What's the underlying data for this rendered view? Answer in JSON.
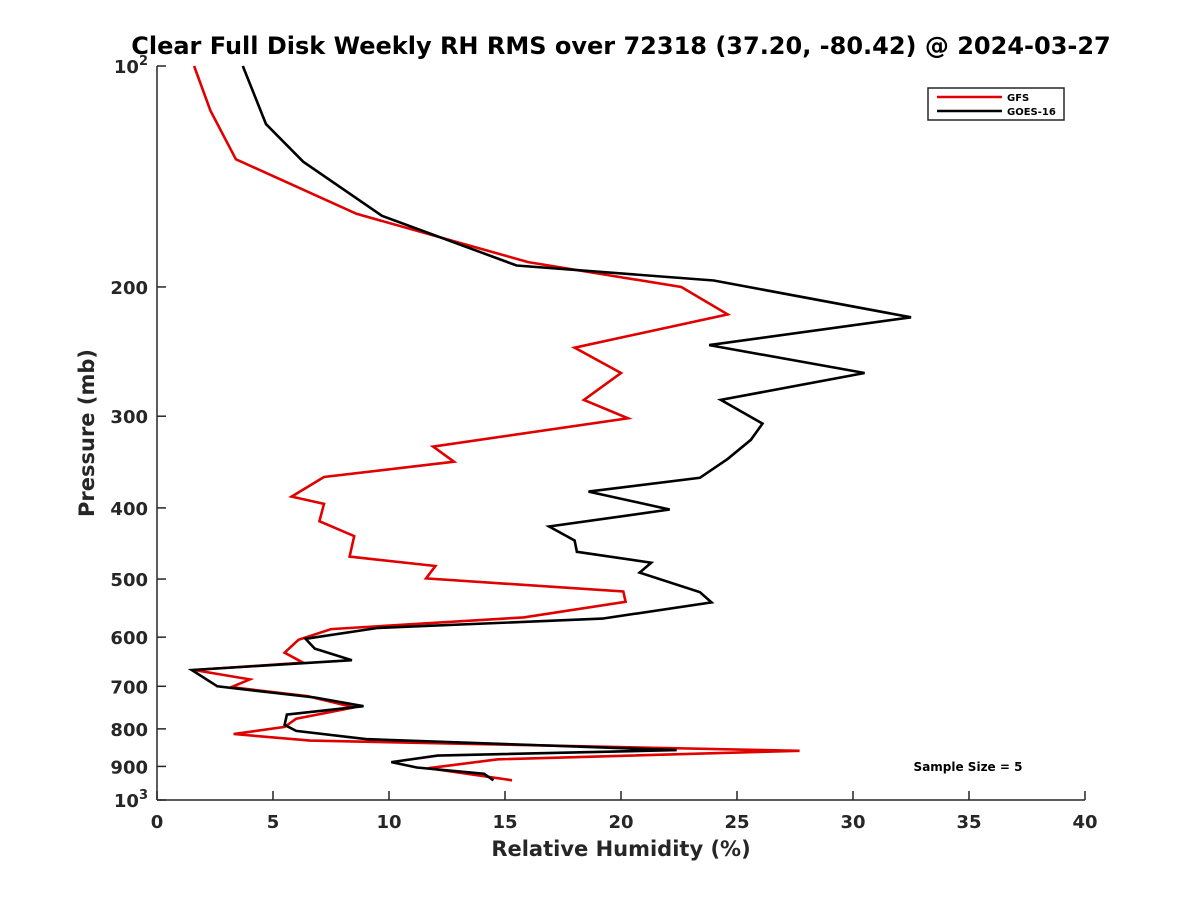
{
  "chart_data": {
    "type": "line",
    "title": "Clear Full Disk Weekly RH RMS over 72318 (37.20, -80.42) @ 2024-03-27",
    "xlabel": "Relative Humidity (%)",
    "ylabel": "Pressure (mb)",
    "xlim": [
      0,
      40
    ],
    "ylim": [
      100,
      1000
    ],
    "y_scale": "log",
    "y_reversed": true,
    "x_ticks": [
      {
        "value": 0,
        "label": "0"
      },
      {
        "value": 5,
        "label": "5"
      },
      {
        "value": 10,
        "label": "10"
      },
      {
        "value": 15,
        "label": "15"
      },
      {
        "value": 20,
        "label": "20"
      },
      {
        "value": 25,
        "label": "25"
      },
      {
        "value": 30,
        "label": "30"
      },
      {
        "value": 35,
        "label": "35"
      },
      {
        "value": 40,
        "label": "40"
      }
    ],
    "y_ticks": [
      {
        "value": 100,
        "base": "10",
        "exp": "2"
      },
      {
        "value": 200,
        "label": "200"
      },
      {
        "value": 300,
        "label": "300"
      },
      {
        "value": 400,
        "label": "400"
      },
      {
        "value": 500,
        "label": "500"
      },
      {
        "value": 600,
        "label": "600"
      },
      {
        "value": 700,
        "label": "700"
      },
      {
        "value": 800,
        "label": "800"
      },
      {
        "value": 900,
        "label": "900"
      },
      {
        "value": 1000,
        "base": "10",
        "exp": "3"
      }
    ],
    "grid": false,
    "legend_position": "top-right",
    "annotation": "Sample Size = 5",
    "series": [
      {
        "name": "GFS",
        "color": "#e00000",
        "points": [
          [
            1.6,
            100
          ],
          [
            2.3,
            115
          ],
          [
            3.4,
            134
          ],
          [
            8.6,
            159
          ],
          [
            16.0,
            185
          ],
          [
            22.6,
            200
          ],
          [
            24.6,
            218
          ],
          [
            18.0,
            242
          ],
          [
            20.0,
            262
          ],
          [
            18.4,
            285
          ],
          [
            20.3,
            302
          ],
          [
            11.9,
            330
          ],
          [
            12.8,
            346
          ],
          [
            7.2,
            363
          ],
          [
            5.8,
            386
          ],
          [
            7.2,
            395
          ],
          [
            7.0,
            417
          ],
          [
            8.5,
            437
          ],
          [
            8.3,
            466
          ],
          [
            12.0,
            480
          ],
          [
            11.6,
            499
          ],
          [
            20.1,
            520
          ],
          [
            20.2,
            537
          ],
          [
            15.8,
            564
          ],
          [
            7.5,
            585
          ],
          [
            6.1,
            605
          ],
          [
            5.5,
            630
          ],
          [
            6.3,
            650
          ],
          [
            1.6,
            665
          ],
          [
            4.0,
            685
          ],
          [
            3.2,
            702
          ],
          [
            6.5,
            722
          ],
          [
            8.5,
            748
          ],
          [
            6.0,
            775
          ],
          [
            5.5,
            795
          ],
          [
            3.3,
            813
          ],
          [
            6.6,
            830
          ],
          [
            27.7,
            857
          ],
          [
            14.7,
            880
          ],
          [
            11.7,
            905
          ],
          [
            15.3,
            940
          ]
        ]
      },
      {
        "name": "GOES-16",
        "color": "#000000",
        "points": [
          [
            3.7,
            100
          ],
          [
            4.7,
            120
          ],
          [
            6.3,
            135
          ],
          [
            9.7,
            160
          ],
          [
            15.5,
            187
          ],
          [
            24.0,
            196
          ],
          [
            32.5,
            220
          ],
          [
            23.8,
            240
          ],
          [
            30.5,
            262
          ],
          [
            24.3,
            285
          ],
          [
            26.1,
            307
          ],
          [
            25.6,
            323
          ],
          [
            24.6,
            343
          ],
          [
            23.4,
            364
          ],
          [
            18.6,
            380
          ],
          [
            22.1,
            402
          ],
          [
            16.9,
            424
          ],
          [
            18.0,
            443
          ],
          [
            18.1,
            459
          ],
          [
            21.3,
            475
          ],
          [
            20.8,
            490
          ],
          [
            23.4,
            521
          ],
          [
            23.9,
            538
          ],
          [
            19.2,
            566
          ],
          [
            9.5,
            583
          ],
          [
            6.4,
            603
          ],
          [
            6.8,
            622
          ],
          [
            8.4,
            645
          ],
          [
            1.5,
            665
          ],
          [
            2.6,
            700
          ],
          [
            6.8,
            725
          ],
          [
            8.9,
            745
          ],
          [
            5.6,
            765
          ],
          [
            5.5,
            790
          ],
          [
            6.0,
            805
          ],
          [
            9.0,
            826
          ],
          [
            22.4,
            855
          ],
          [
            12.1,
            870
          ],
          [
            10.1,
            888
          ],
          [
            11.2,
            903
          ],
          [
            14.1,
            921
          ],
          [
            14.5,
            940
          ]
        ]
      }
    ]
  }
}
